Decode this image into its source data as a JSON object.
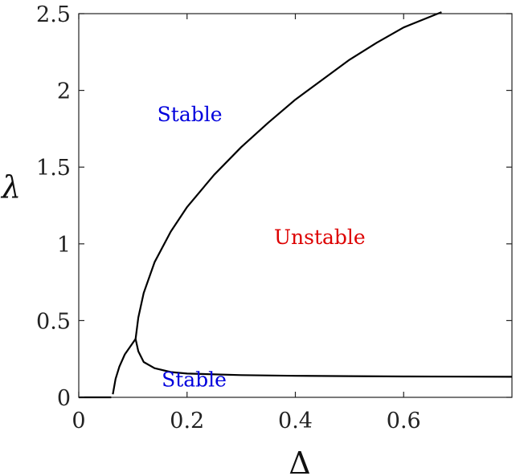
{
  "chart_data": {
    "type": "line",
    "xlabel": "Δ",
    "ylabel": "λ",
    "xlim": [
      0,
      0.8
    ],
    "ylim": [
      0,
      2.5
    ],
    "x_ticks": [
      "0",
      "0.2",
      "0.4",
      "0.6"
    ],
    "y_ticks": [
      "0",
      "0.5",
      "1",
      "1.5",
      "2",
      "2.5"
    ],
    "grid": false,
    "series": [
      {
        "color": "#000000",
        "points": [
          [
            0.0,
            0.0
          ],
          [
            0.06,
            0.0
          ]
        ]
      },
      {
        "color": "#000000",
        "points": [
          [
            0.063,
            0.02
          ],
          [
            0.068,
            0.12
          ],
          [
            0.075,
            0.2
          ],
          [
            0.085,
            0.28
          ],
          [
            0.095,
            0.33
          ],
          [
            0.105,
            0.38
          ]
        ]
      },
      {
        "color": "#000000",
        "points": [
          [
            0.105,
            0.38
          ],
          [
            0.11,
            0.3
          ],
          [
            0.12,
            0.23
          ],
          [
            0.14,
            0.19
          ],
          [
            0.17,
            0.165
          ],
          [
            0.2,
            0.155
          ],
          [
            0.3,
            0.145
          ],
          [
            0.4,
            0.14
          ],
          [
            0.5,
            0.138
          ],
          [
            0.6,
            0.136
          ],
          [
            0.7,
            0.135
          ],
          [
            0.8,
            0.134
          ]
        ]
      },
      {
        "color": "#000000",
        "points": [
          [
            0.105,
            0.38
          ],
          [
            0.11,
            0.52
          ],
          [
            0.12,
            0.68
          ],
          [
            0.14,
            0.88
          ],
          [
            0.17,
            1.08
          ],
          [
            0.2,
            1.24
          ],
          [
            0.25,
            1.45
          ],
          [
            0.3,
            1.63
          ],
          [
            0.35,
            1.79
          ],
          [
            0.4,
            1.94
          ],
          [
            0.45,
            2.07
          ],
          [
            0.5,
            2.2
          ],
          [
            0.55,
            2.31
          ],
          [
            0.6,
            2.41
          ],
          [
            0.67,
            2.51
          ]
        ]
      }
    ],
    "annotations": [
      {
        "text": "Stable",
        "x": 0.205,
        "y": 1.8,
        "color": "#0000dd"
      },
      {
        "text": "Unstable",
        "x": 0.445,
        "y": 1.0,
        "color": "#dd0000"
      },
      {
        "text": "Stable",
        "x": 0.213,
        "y": 0.07,
        "color": "#0000dd"
      }
    ]
  }
}
